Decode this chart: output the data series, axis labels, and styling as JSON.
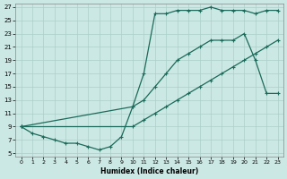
{
  "xlabel": "Humidex (Indice chaleur)",
  "bg_color": "#cce8e4",
  "grid_color": "#aacfca",
  "line_color": "#1a6b5a",
  "xmin": 0,
  "xmax": 23,
  "ymin": 5,
  "ymax": 27,
  "yticks": [
    5,
    7,
    9,
    11,
    13,
    15,
    17,
    19,
    21,
    23,
    25,
    27
  ],
  "xticks": [
    0,
    1,
    2,
    3,
    4,
    5,
    6,
    7,
    8,
    9,
    10,
    11,
    12,
    13,
    14,
    15,
    16,
    17,
    18,
    19,
    20,
    21,
    22,
    23
  ],
  "line1_x": [
    0,
    10,
    11,
    12,
    13,
    14,
    15,
    16,
    17,
    18,
    19,
    20,
    21,
    22,
    23
  ],
  "line1_y": [
    9,
    9,
    10,
    11,
    12,
    13,
    14,
    15,
    16,
    17,
    18,
    19,
    20,
    21,
    22
  ],
  "line2_x": [
    0,
    1,
    2,
    3,
    4,
    5,
    6,
    7,
    8,
    9,
    10,
    11,
    12,
    13,
    14,
    15,
    16,
    17,
    18,
    19,
    20,
    21,
    22,
    23
  ],
  "line2_y": [
    9,
    8,
    7.5,
    7,
    6.5,
    6.5,
    6,
    5.5,
    6,
    7.5,
    12,
    17,
    26,
    26,
    26.5,
    26.5,
    26.5,
    27,
    26.5,
    26.5,
    26.5,
    26,
    26.5,
    26.5
  ],
  "line3_x": [
    0,
    10,
    11,
    12,
    13,
    14,
    15,
    16,
    17,
    18,
    19,
    20,
    21,
    22,
    23
  ],
  "line3_y": [
    9,
    12,
    13,
    15,
    17,
    19,
    20,
    21,
    22,
    22,
    22,
    23,
    19,
    14,
    14
  ]
}
